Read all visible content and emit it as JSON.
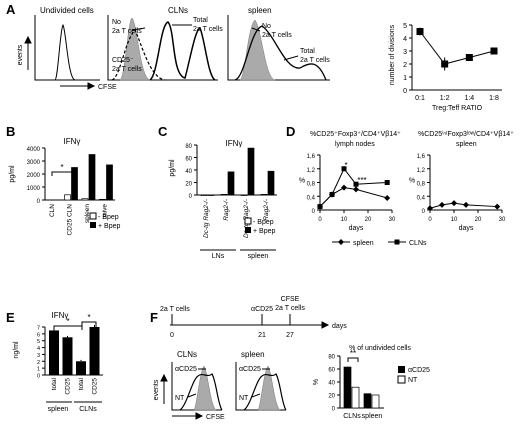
{
  "panels": {
    "A": {
      "letter": "A",
      "hist1": {
        "title": "Undivided cells",
        "ylabel": "events",
        "xlabel": "CFSE"
      },
      "hist2": {
        "title": "CLNs",
        "label_no": "No",
        "label_no2": "2a T cells",
        "label_total": "Total",
        "label_total2": "2a T cells",
        "label_cd25": "CD25⁻",
        "label_cd25b": "2a T cells"
      },
      "hist3": {
        "title": "spleen",
        "label_no": "No",
        "label_no2": "2a T cells",
        "label_total": "Total",
        "label_total2": "2a T cells"
      },
      "line": {
        "ylabel": "number of divisions",
        "xlabel": "Treg:Teff RATIO",
        "ticks_y": [
          "0",
          "1",
          "2",
          "3",
          "4",
          "5"
        ]
      }
    },
    "B": {
      "letter": "B",
      "title": "IFNγ",
      "ylabel": "pg/ml",
      "ticks_y": [
        "0",
        "1000",
        "2000",
        "3000",
        "4000"
      ],
      "legend_minus": "- Bpep",
      "legend_plus": "+ Bpep",
      "sig": "*"
    },
    "C": {
      "letter": "C",
      "title": "IFNγ",
      "ylabel": "pg/ml",
      "ticks_y": [
        "0",
        "20",
        "40",
        "60",
        "80"
      ],
      "legend_minus": "- Bpep",
      "legend_plus": "+ Bpep",
      "group1": "LNs",
      "group2": "spleen"
    },
    "D": {
      "letter": "D",
      "title_left": "%CD25⁺Foxp3⁺/CD4⁺Vβ14⁺",
      "sub_left": "lymph nodes",
      "title_right": "%CD25ⁱⁿᵗFoxp3ˡᵒʷ/CD4⁺Vβ14⁺",
      "sub_right": "spleen",
      "ylabel": "%",
      "xlabel": "days",
      "ticks_y": [
        "0",
        "0,4",
        "0,8",
        "1,2",
        "1,6"
      ],
      "ticks_x": [
        "0",
        "10",
        "20",
        "30"
      ],
      "legend_spleen": "spleen",
      "legend_clns": "CLNs",
      "sig1": "*",
      "sig2": "***"
    },
    "E": {
      "letter": "E",
      "title": "IFNγ",
      "ylabel": "ng/ml",
      "ticks_y": [
        "0",
        "1",
        "2",
        "3",
        "4",
        "5",
        "6",
        "7"
      ],
      "group1": "spleen",
      "group2": "CLNs",
      "sig": "*"
    },
    "F": {
      "letter": "F",
      "timeline": {
        "t0_label": "2a T cells",
        "t21_label": "αCD25",
        "t27_label": "CFSE",
        "t27_label2": "2a T cells",
        "axis": "days",
        "ticks": [
          "0",
          "21",
          "27"
        ]
      },
      "hist_clns": {
        "title": "CLNs",
        "l1": "αCD25",
        "l2": "NT"
      },
      "hist_spleen": {
        "title": "spleen",
        "l1": "αCD25",
        "l2": "NT"
      },
      "ylabel_hist": "events",
      "xlabel_hist": "CFSE",
      "bar": {
        "title": "% of undivided cells",
        "ylabel": "%",
        "ticks_y": [
          "0",
          "20",
          "40",
          "60",
          "80"
        ],
        "legend1": "αCD25",
        "legend2": "NT",
        "sig": "**"
      }
    }
  },
  "chart_data": [
    {
      "panel": "A",
      "type": "line",
      "categories": [
        "0:1",
        "1:2",
        "1:4",
        "1:8"
      ],
      "values": [
        4.5,
        2.0,
        2.5,
        3.0
      ],
      "errors": [
        0.3,
        0.5,
        0.2,
        0.2
      ],
      "xlabel": "Treg:Teff RATIO",
      "ylabel": "number of divisions",
      "ylim": [
        0,
        5
      ]
    },
    {
      "panel": "B",
      "type": "bar",
      "title": "IFNγ",
      "ylabel": "pg/ml",
      "ylim": [
        0,
        4000
      ],
      "categories": [
        "CLN",
        "CD25 CLN",
        "spleen",
        "naive"
      ],
      "series": [
        {
          "name": "- Bpep",
          "values": [
            0,
            400,
            100,
            50
          ]
        },
        {
          "name": "+ Bpep",
          "values": [
            0,
            2500,
            3500,
            2700
          ]
        }
      ]
    },
    {
      "panel": "C",
      "type": "bar",
      "title": "IFNγ",
      "ylabel": "pg/ml",
      "ylim": [
        0,
        80
      ],
      "categories": [
        "Dc-tg Rag2-/-",
        "Rag2-/-",
        "Dc-tg Rag2-/-",
        "Rag2-/-"
      ],
      "series": [
        {
          "name": "- Bpep",
          "values": [
            0,
            1,
            0,
            1
          ]
        },
        {
          "name": "+ Bpep",
          "values": [
            0,
            37,
            75,
            38
          ]
        }
      ]
    },
    {
      "panel": "D-left",
      "type": "line",
      "title": "%CD25⁺Foxp3⁺/CD4⁺Vβ14⁺",
      "xlabel": "days",
      "ylabel": "%",
      "ylim": [
        0,
        1.6
      ],
      "xlim": [
        0,
        30
      ],
      "series": [
        {
          "name": "spleen",
          "x": [
            0,
            5,
            10,
            15,
            28
          ],
          "y": [
            0.1,
            0.45,
            0.65,
            0.6,
            0.35
          ]
        },
        {
          "name": "CLNs",
          "x": [
            0,
            5,
            10,
            15,
            28
          ],
          "y": [
            0.1,
            0.45,
            1.2,
            0.75,
            0.8
          ]
        }
      ]
    },
    {
      "panel": "D-right",
      "type": "line",
      "title": "%CD25ⁱⁿᵗFoxp3ˡᵒʷ/CD4⁺Vβ14⁺",
      "xlabel": "days",
      "ylabel": "%",
      "ylim": [
        0,
        1.6
      ],
      "xlim": [
        0,
        30
      ],
      "series": [
        {
          "name": "spleen",
          "x": [
            0,
            5,
            10,
            15,
            28
          ],
          "y": [
            0.05,
            0.15,
            0.2,
            0.15,
            0.1
          ]
        }
      ]
    },
    {
      "panel": "E",
      "type": "bar",
      "title": "IFNγ",
      "ylabel": "ng/ml",
      "ylim": [
        0,
        7
      ],
      "categories": [
        "total",
        "CD25",
        "total",
        "CD25"
      ],
      "values": [
        6.5,
        5.5,
        2.0,
        7.0
      ],
      "errors": [
        0.3,
        0.2,
        0.2,
        0.3
      ]
    },
    {
      "panel": "F",
      "type": "bar",
      "title": "% of undivided cells",
      "ylabel": "%",
      "ylim": [
        0,
        80
      ],
      "categories": [
        "CLNs",
        "spleen"
      ],
      "series": [
        {
          "name": "αCD25",
          "values": [
            63,
            22
          ]
        },
        {
          "name": "NT",
          "values": [
            32,
            20
          ]
        }
      ]
    }
  ]
}
